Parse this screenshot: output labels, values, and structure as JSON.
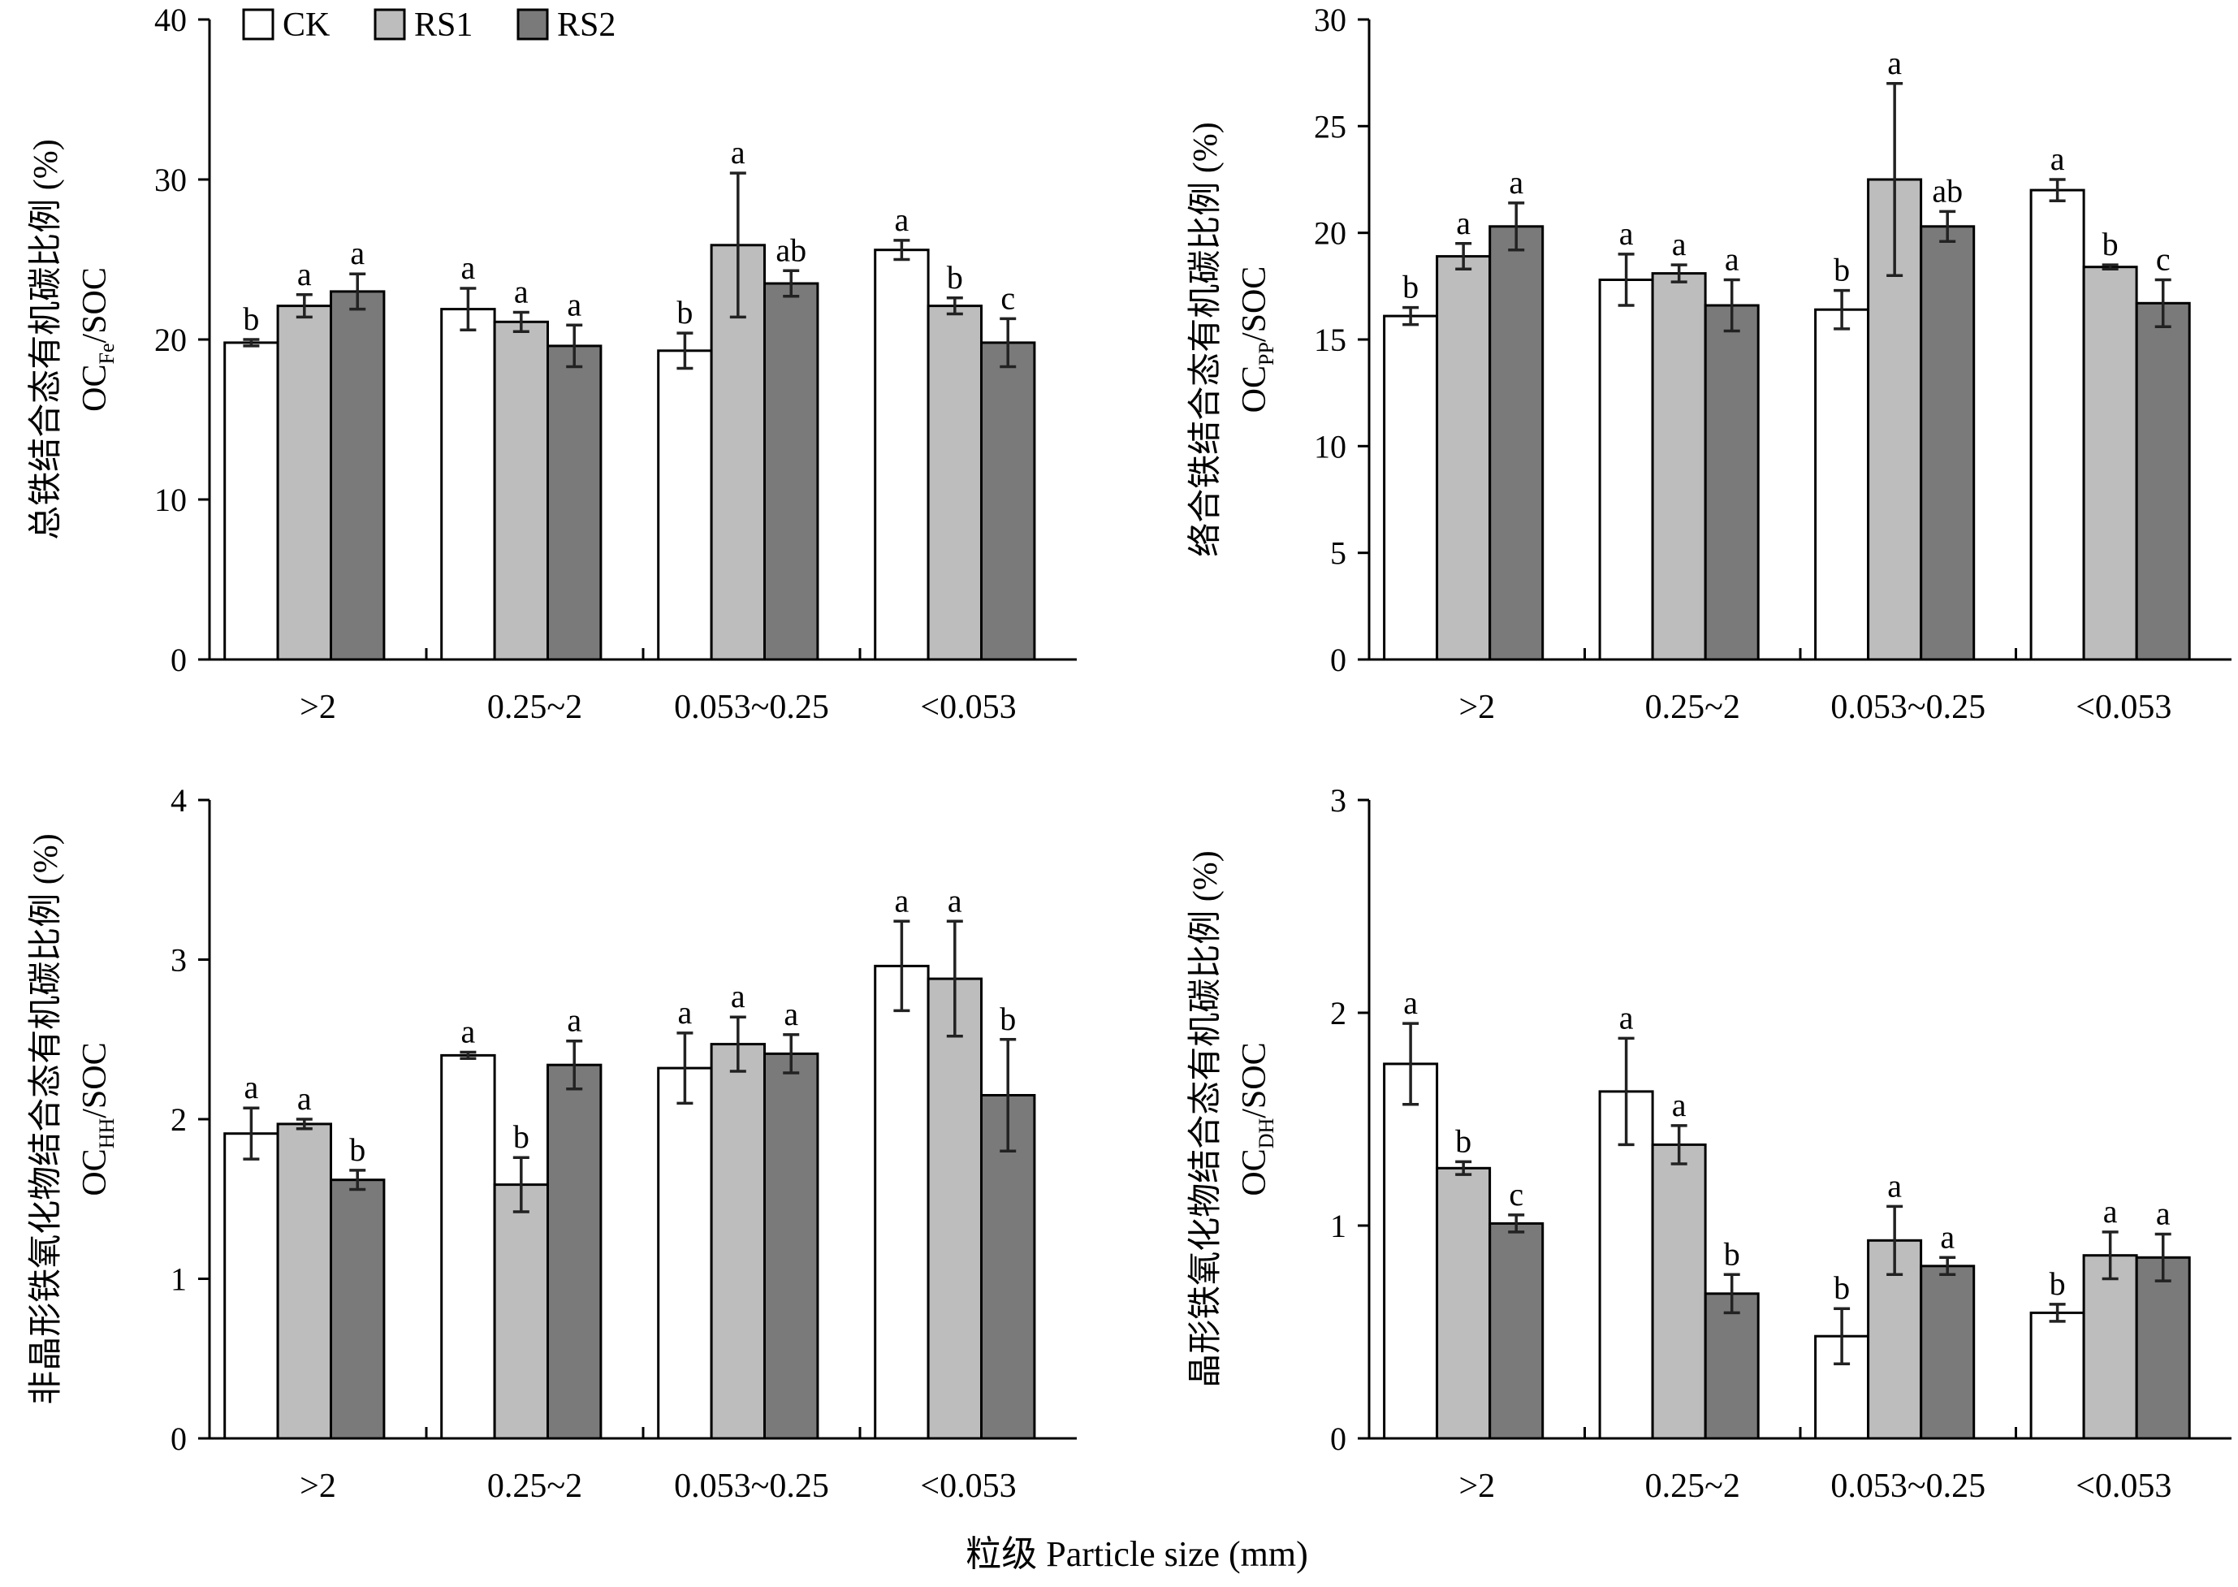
{
  "x_title": "粒级 Particle size (mm)",
  "legend": [
    {
      "name": "CK",
      "color": "#ffffff"
    },
    {
      "name": "RS1",
      "color": "#bdbdbd"
    },
    {
      "name": "RS2",
      "color": "#7a7a7a"
    }
  ],
  "chart_data": [
    {
      "type": "bar",
      "ylabel_cn": "总铁结合态有机碳比例 (%)",
      "ylabel_base": "OC",
      "ylabel_sub": "Fe",
      "ylabel_tail": "/SOC",
      "ylim": [
        0,
        40
      ],
      "yticks": [
        0,
        10,
        20,
        30,
        40
      ],
      "categories": [
        ">2",
        "0.25~2",
        "0.053~0.25",
        "<0.053"
      ],
      "series": [
        {
          "name": "CK",
          "values": [
            19.8,
            21.9,
            19.3,
            25.6
          ],
          "errors": [
            0.2,
            1.3,
            1.1,
            0.6
          ],
          "sig": [
            "b",
            "a",
            "b",
            "a"
          ]
        },
        {
          "name": "RS1",
          "values": [
            22.1,
            21.1,
            25.9,
            22.1
          ],
          "errors": [
            0.7,
            0.6,
            4.5,
            0.5
          ],
          "sig": [
            "a",
            "a",
            "a",
            "b"
          ]
        },
        {
          "name": "RS2",
          "values": [
            23.0,
            19.6,
            23.5,
            19.8
          ],
          "errors": [
            1.1,
            1.3,
            0.8,
            1.5
          ],
          "sig": [
            "a",
            "a",
            "ab",
            "c"
          ]
        }
      ]
    },
    {
      "type": "bar",
      "ylabel_cn": "络合铁结合态有机碳比例 (%)",
      "ylabel_base": "OC",
      "ylabel_sub": "PP",
      "ylabel_tail": "/SOC",
      "ylim": [
        0,
        30
      ],
      "yticks": [
        0,
        5,
        10,
        15,
        20,
        25,
        30
      ],
      "categories": [
        ">2",
        "0.25~2",
        "0.053~0.25",
        "<0.053"
      ],
      "series": [
        {
          "name": "CK",
          "values": [
            16.1,
            17.8,
            16.4,
            22.0
          ],
          "errors": [
            0.4,
            1.2,
            0.9,
            0.5
          ],
          "sig": [
            "b",
            "a",
            "b",
            "a"
          ]
        },
        {
          "name": "RS1",
          "values": [
            18.9,
            18.1,
            22.5,
            18.4
          ],
          "errors": [
            0.6,
            0.4,
            4.5,
            0.1
          ],
          "sig": [
            "a",
            "a",
            "a",
            "b"
          ]
        },
        {
          "name": "RS2",
          "values": [
            20.3,
            16.6,
            20.3,
            16.7
          ],
          "errors": [
            1.1,
            1.2,
            0.7,
            1.1
          ],
          "sig": [
            "a",
            "a",
            "ab",
            "c"
          ]
        }
      ]
    },
    {
      "type": "bar",
      "ylabel_cn": "非晶形铁氧化物结合态有机碳比例 (%)",
      "ylabel_base": "OC",
      "ylabel_sub": "HH",
      "ylabel_tail": "/SOC",
      "ylim": [
        0,
        4
      ],
      "yticks": [
        0,
        1,
        2,
        3,
        4
      ],
      "categories": [
        ">2",
        "0.25~2",
        "0.053~0.25",
        "<0.053"
      ],
      "series": [
        {
          "name": "CK",
          "values": [
            1.91,
            2.4,
            2.32,
            2.96
          ],
          "errors": [
            0.16,
            0.02,
            0.22,
            0.28
          ],
          "sig": [
            "a",
            "a",
            "a",
            "a"
          ]
        },
        {
          "name": "RS1",
          "values": [
            1.97,
            1.59,
            2.47,
            2.88
          ],
          "errors": [
            0.03,
            0.17,
            0.17,
            0.36
          ],
          "sig": [
            "a",
            "b",
            "a",
            "a"
          ]
        },
        {
          "name": "RS2",
          "values": [
            1.62,
            2.34,
            2.41,
            2.15
          ],
          "errors": [
            0.06,
            0.15,
            0.12,
            0.35
          ],
          "sig": [
            "b",
            "a",
            "a",
            "b"
          ]
        }
      ]
    },
    {
      "type": "bar",
      "ylabel_cn": "晶形铁氧化物结合态有机碳比例 (%)",
      "ylabel_base": "OC",
      "ylabel_sub": "DH",
      "ylabel_tail": "/SOC",
      "ylim": [
        0,
        3
      ],
      "yticks": [
        0,
        1,
        2,
        3
      ],
      "categories": [
        ">2",
        "0.25~2",
        "0.053~0.25",
        "<0.053"
      ],
      "series": [
        {
          "name": "CK",
          "values": [
            1.76,
            1.63,
            0.48,
            0.59
          ],
          "errors": [
            0.19,
            0.25,
            0.13,
            0.04
          ],
          "sig": [
            "a",
            "a",
            "b",
            "b"
          ]
        },
        {
          "name": "RS1",
          "values": [
            1.27,
            1.38,
            0.93,
            0.86
          ],
          "errors": [
            0.03,
            0.09,
            0.16,
            0.11
          ],
          "sig": [
            "b",
            "a",
            "a",
            "a"
          ]
        },
        {
          "name": "RS2",
          "values": [
            1.01,
            0.68,
            0.81,
            0.85
          ],
          "errors": [
            0.04,
            0.09,
            0.04,
            0.11
          ],
          "sig": [
            "c",
            "b",
            "a",
            "a"
          ]
        }
      ]
    }
  ]
}
